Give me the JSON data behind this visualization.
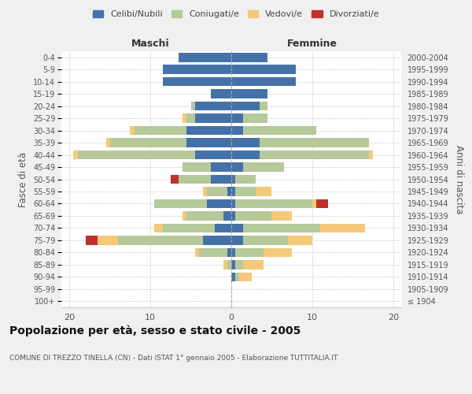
{
  "age_groups": [
    "100+",
    "95-99",
    "90-94",
    "85-89",
    "80-84",
    "75-79",
    "70-74",
    "65-69",
    "60-64",
    "55-59",
    "50-54",
    "45-49",
    "40-44",
    "35-39",
    "30-34",
    "25-29",
    "20-24",
    "15-19",
    "10-14",
    "5-9",
    "0-4"
  ],
  "birth_years": [
    "≤ 1904",
    "1905-1909",
    "1910-1914",
    "1915-1919",
    "1920-1924",
    "1925-1929",
    "1930-1934",
    "1935-1939",
    "1940-1944",
    "1945-1949",
    "1950-1954",
    "1955-1959",
    "1960-1964",
    "1965-1969",
    "1970-1974",
    "1975-1979",
    "1980-1984",
    "1985-1989",
    "1990-1994",
    "1995-1999",
    "2000-2004"
  ],
  "maschi": {
    "celibi": [
      0,
      0,
      0,
      0,
      0.5,
      3.5,
      2.0,
      1.0,
      3.0,
      0.5,
      2.5,
      2.5,
      4.5,
      5.5,
      5.5,
      4.5,
      4.5,
      2.5,
      8.5,
      8.5,
      6.5
    ],
    "coniugati": [
      0,
      0,
      0,
      0.5,
      3.5,
      10.5,
      6.5,
      4.5,
      6.5,
      2.5,
      4.0,
      3.5,
      14.5,
      9.5,
      6.5,
      1.0,
      0.5,
      0,
      0,
      0,
      0
    ],
    "vedovi": [
      0,
      0,
      0,
      0.5,
      0.5,
      2.5,
      1.0,
      0.5,
      0,
      0.5,
      0,
      0,
      0.5,
      0.5,
      0.5,
      0.5,
      0,
      0,
      0,
      0,
      0
    ],
    "divorziati": [
      0,
      0,
      0,
      0,
      0,
      1.5,
      0,
      0,
      0,
      0,
      1.0,
      0,
      0,
      0,
      0,
      0,
      0,
      0,
      0,
      0,
      0
    ]
  },
  "femmine": {
    "nubili": [
      0,
      0,
      0.5,
      0.5,
      0.5,
      1.5,
      1.5,
      0.5,
      0.5,
      0.5,
      0.5,
      1.5,
      3.5,
      3.5,
      1.5,
      1.5,
      3.5,
      4.5,
      8.0,
      8.0,
      4.5
    ],
    "coniugate": [
      0,
      0,
      0.5,
      1.0,
      3.5,
      5.5,
      9.5,
      4.5,
      9.5,
      2.5,
      2.5,
      5.0,
      13.5,
      13.5,
      9.0,
      3.0,
      1.0,
      0,
      0,
      0,
      0
    ],
    "vedove": [
      0,
      0,
      1.5,
      2.5,
      3.5,
      3.0,
      5.5,
      2.5,
      0.5,
      2.0,
      0,
      0,
      0.5,
      0,
      0,
      0,
      0,
      0,
      0,
      0,
      0
    ],
    "divorziate": [
      0,
      0,
      0,
      0,
      0,
      0,
      0,
      0,
      1.5,
      0,
      0,
      0,
      0,
      0,
      0,
      0,
      0,
      0,
      0,
      0,
      0
    ]
  },
  "colors": {
    "celibi": "#4472a8",
    "coniugati": "#b5c99a",
    "vedovi": "#f5c97a",
    "divorziati": "#c0312b"
  },
  "xlim": 21,
  "title": "Popolazione per età, sesso e stato civile - 2005",
  "subtitle": "COMUNE DI TREZZO TINELLA (CN) - Dati ISTAT 1° gennaio 2005 - Elaborazione TUTTITALIA.IT",
  "ylabel_left": "Fasce di età",
  "ylabel_right": "Anni di nascita",
  "xlabel_left": "Maschi",
  "xlabel_right": "Femmine",
  "legend_labels": [
    "Celibi/Nubili",
    "Coniugati/e",
    "Vedovi/e",
    "Divorziati/e"
  ],
  "bg_color": "#f0f0f0",
  "plot_bg_color": "#ffffff"
}
